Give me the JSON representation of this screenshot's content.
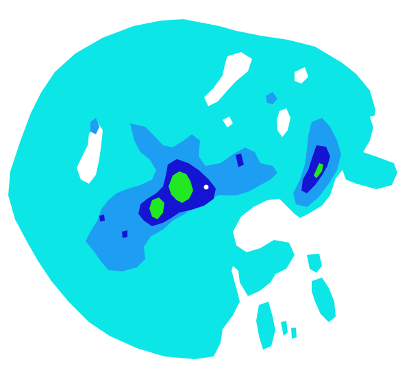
{
  "map": {
    "type": "weather-radar-reflectivity",
    "legend_visible": false,
    "labels_visible": false
  },
  "palette": {
    "background": "#ffffff",
    "light_echo": "#0ce6e6",
    "moderate_echo": "#1e9ef2",
    "strong_echo": "#1414d2",
    "heavy_echo": "#22e822",
    "radar_site": "#ffffff"
  },
  "layers": [
    {
      "name": "light-echo-coverage",
      "color_key": "light_echo"
    },
    {
      "name": "moderate-echo-cells",
      "color_key": "moderate_echo"
    },
    {
      "name": "strong-echo-cores",
      "color_key": "strong_echo"
    },
    {
      "name": "heavy-echo-cores",
      "color_key": "heavy_echo"
    }
  ],
  "radar_site": {
    "icon": "radar-site-marker"
  }
}
